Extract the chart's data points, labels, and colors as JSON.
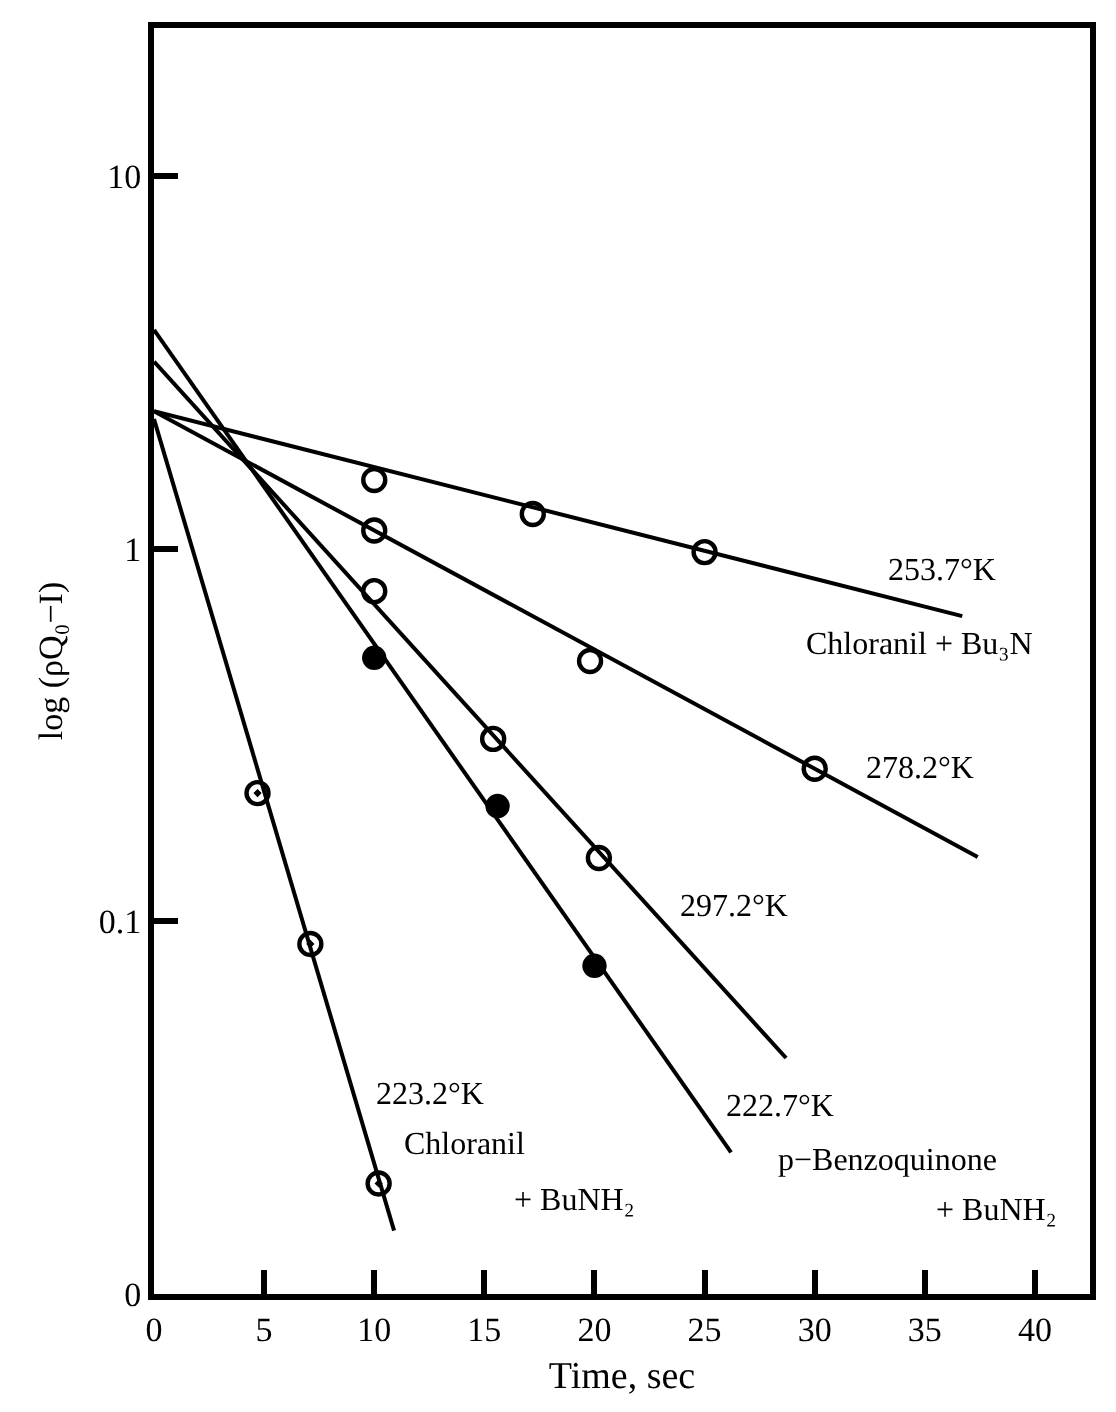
{
  "chart_data": {
    "type": "scatter",
    "xlabel": "Time, sec",
    "ylabel": "log (ρQ₀−I)",
    "xlim": [
      0,
      42.5
    ],
    "ylim": [
      0.01,
      25
    ],
    "log": "y",
    "xticks": [
      0,
      5,
      10,
      15,
      20,
      25,
      30,
      35,
      40
    ],
    "yticks": [
      {
        "value": 0.01,
        "label": "0"
      },
      0.1,
      1,
      10
    ],
    "series": [
      {
        "marker": "circle-open",
        "color": "#000000",
        "x": [
          10,
          17.2,
          25
        ],
        "values": [
          1.53,
          1.24,
          0.98
        ]
      },
      {
        "marker": "circle-open",
        "color": "#000000",
        "x": [
          10,
          19.8,
          30
        ],
        "values": [
          1.12,
          0.5,
          0.257
        ]
      },
      {
        "marker": "circle-open",
        "color": "#000000",
        "x": [
          10,
          15.4,
          20.2
        ],
        "values": [
          0.77,
          0.309,
          0.148
        ]
      },
      {
        "marker": "circle",
        "color": "#000000",
        "x": [
          10,
          15.6,
          20
        ],
        "values": [
          0.51,
          0.204,
          0.076
        ]
      },
      {
        "marker": "circle-dot",
        "color": "#000000",
        "x": [
          4.7,
          7.1,
          10.2
        ],
        "values": [
          0.221,
          0.087,
          0.0198
        ]
      },
      {
        "type": "line",
        "marker": "none",
        "color": "#000000",
        "x": [
          0,
          36.7
        ],
        "values": [
          2.34,
          0.66
        ]
      },
      {
        "type": "line",
        "marker": "none",
        "color": "#000000",
        "x": [
          0,
          37.4
        ],
        "values": [
          2.34,
          0.149
        ]
      },
      {
        "type": "line",
        "marker": "none",
        "color": "#000000",
        "x": [
          0,
          28.7
        ],
        "values": [
          3.18,
          0.043
        ]
      },
      {
        "type": "line",
        "marker": "none",
        "color": "#000000",
        "x": [
          0,
          26.2
        ],
        "values": [
          3.87,
          0.024
        ]
      },
      {
        "type": "line",
        "marker": "none",
        "color": "#000000",
        "x": [
          0,
          10.9
        ],
        "values": [
          2.23,
          0.0148
        ]
      }
    ],
    "annotations": [
      "253.7°K",
      "Chloranil + Bu₃N",
      "278.2°K",
      "297.2°K",
      "222.7°K",
      "p−Benzoquinone",
      "+ BuNH₂",
      "223.2°K",
      "Chloranil",
      "+ BuNH₂"
    ]
  }
}
